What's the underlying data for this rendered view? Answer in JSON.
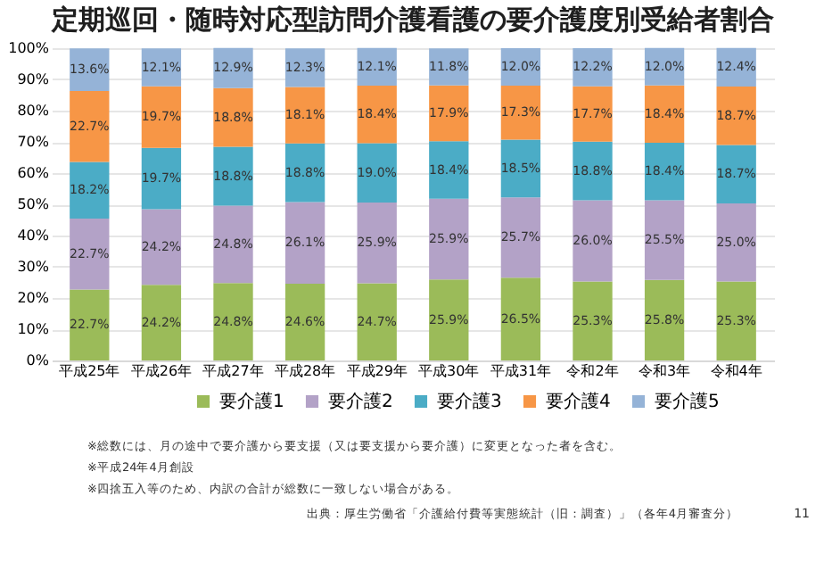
{
  "chart_data": {
    "type": "bar",
    "stacked": true,
    "title": "定期巡回・随時対応型訪問介護看護の要介護度別受給者割合",
    "categories": [
      "平成25年",
      "平成26年",
      "平成27年",
      "平成28年",
      "平成29年",
      "平成30年",
      "平成31年",
      "令和2年",
      "令和3年",
      "令和4年"
    ],
    "series": [
      {
        "name": "要介護1",
        "color": "#9bbb59",
        "values": [
          22.7,
          24.2,
          24.8,
          24.6,
          24.7,
          25.9,
          26.5,
          25.3,
          25.8,
          25.3
        ],
        "value_labels": [
          "22.7%",
          "24.2%",
          "24.8%",
          "24.6%",
          "24.7%",
          "25.9%",
          "26.5%",
          "25.3%",
          "25.8%",
          "25.3%"
        ]
      },
      {
        "name": "要介護2",
        "color": "#b3a2c7",
        "values": [
          22.7,
          24.2,
          24.8,
          26.1,
          25.9,
          25.9,
          25.7,
          26.0,
          25.5,
          25.0
        ],
        "value_labels": [
          "22.7%",
          "24.2%",
          "24.8%",
          "26.1%",
          "25.9%",
          "25.9%",
          "25.7%",
          "26.0%",
          "25.5%",
          "25.0%"
        ]
      },
      {
        "name": "要介護3",
        "color": "#4bacc6",
        "values": [
          18.2,
          19.7,
          18.8,
          18.8,
          19.0,
          18.4,
          18.5,
          18.8,
          18.4,
          18.7
        ],
        "value_labels": [
          "18.2%",
          "19.7%",
          "18.8%",
          "18.8%",
          "19.0%",
          "18.4%",
          "18.5%",
          "18.8%",
          "18.4%",
          "18.7%"
        ]
      },
      {
        "name": "要介護4",
        "color": "#f79646",
        "values": [
          22.7,
          19.7,
          18.8,
          18.1,
          18.4,
          17.9,
          17.3,
          17.7,
          18.4,
          18.7
        ],
        "value_labels": [
          "22.7%",
          "19.7%",
          "18.8%",
          "18.1%",
          "18.4%",
          "17.9%",
          "17.3%",
          "17.7%",
          "18.4%",
          "18.7%"
        ]
      },
      {
        "name": "要介護5",
        "color": "#95b3d7",
        "values": [
          13.6,
          12.1,
          12.9,
          12.3,
          12.1,
          11.8,
          12.0,
          12.2,
          12.0,
          12.4
        ],
        "value_labels": [
          "13.6%",
          "12.1%",
          "12.9%",
          "12.3%",
          "12.1%",
          "11.8%",
          "12.0%",
          "12.2%",
          "12.0%",
          "12.4%"
        ]
      }
    ],
    "ylim": [
      0,
      100
    ],
    "yticks": [
      {
        "value": 0,
        "label": "0%"
      },
      {
        "value": 10,
        "label": "10%"
      },
      {
        "value": 20,
        "label": "20%"
      },
      {
        "value": 30,
        "label": "30%"
      },
      {
        "value": 40,
        "label": "40%"
      },
      {
        "value": 50,
        "label": "50%"
      },
      {
        "value": 60,
        "label": "60%"
      },
      {
        "value": 70,
        "label": "70%"
      },
      {
        "value": 80,
        "label": "80%"
      },
      {
        "value": 90,
        "label": "90%"
      },
      {
        "value": 100,
        "label": "100%"
      }
    ],
    "grid": "y",
    "legend": "bottom",
    "annotations": [
      "※総数には、月の途中で要介護から要支援（又は要支援から要介護）に変更となった者を含む。",
      "※平成24年4月創設",
      "※四捨五入等のため、内訳の合計が総数に一致しない場合がある。",
      "出典：厚生労働省「介護給付費等実態統計（旧：調査）」（各年4月審査分）",
      "11"
    ]
  }
}
